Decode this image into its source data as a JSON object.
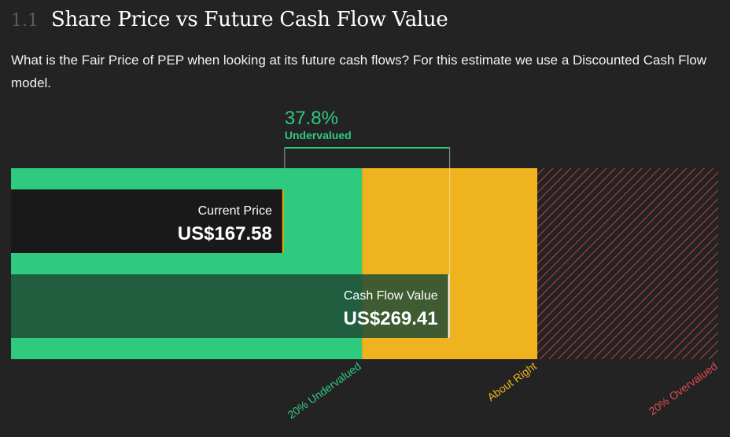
{
  "section": {
    "number": "1.1",
    "title": "Share Price vs Future Cash Flow Value",
    "description": "What is the Fair Price of PEP when looking at its future cash flows? For this estimate we use a Discounted Cash Flow model."
  },
  "colors": {
    "background": "#232323",
    "undervalued": "#2ecb7f",
    "about_right": "#efb31f",
    "overvalued": "#e04a4a",
    "cash_flow_bar": "#1f4b35",
    "price_bar": "#191919"
  },
  "chart_data": {
    "type": "bar",
    "orientation": "horizontal",
    "x_max": 434.33,
    "zones": [
      {
        "label": "20% Undervalued",
        "from": 0,
        "to": 215.53,
        "color": "#2ecb7f"
      },
      {
        "label": "About Right",
        "from": 215.53,
        "to": 323.29,
        "color": "#efb31f"
      },
      {
        "label": "20% Overvalued",
        "from": 323.29,
        "to": 434.33,
        "color": "#e04a4a"
      }
    ],
    "bars": [
      {
        "label": "Current Price",
        "value": 167.58,
        "value_text": "US$167.58"
      },
      {
        "label": "Cash Flow Value",
        "value": 269.41,
        "value_text": "US$269.41"
      }
    ],
    "difference": {
      "percent_text": "37.8%",
      "label": "Undervalued"
    }
  }
}
